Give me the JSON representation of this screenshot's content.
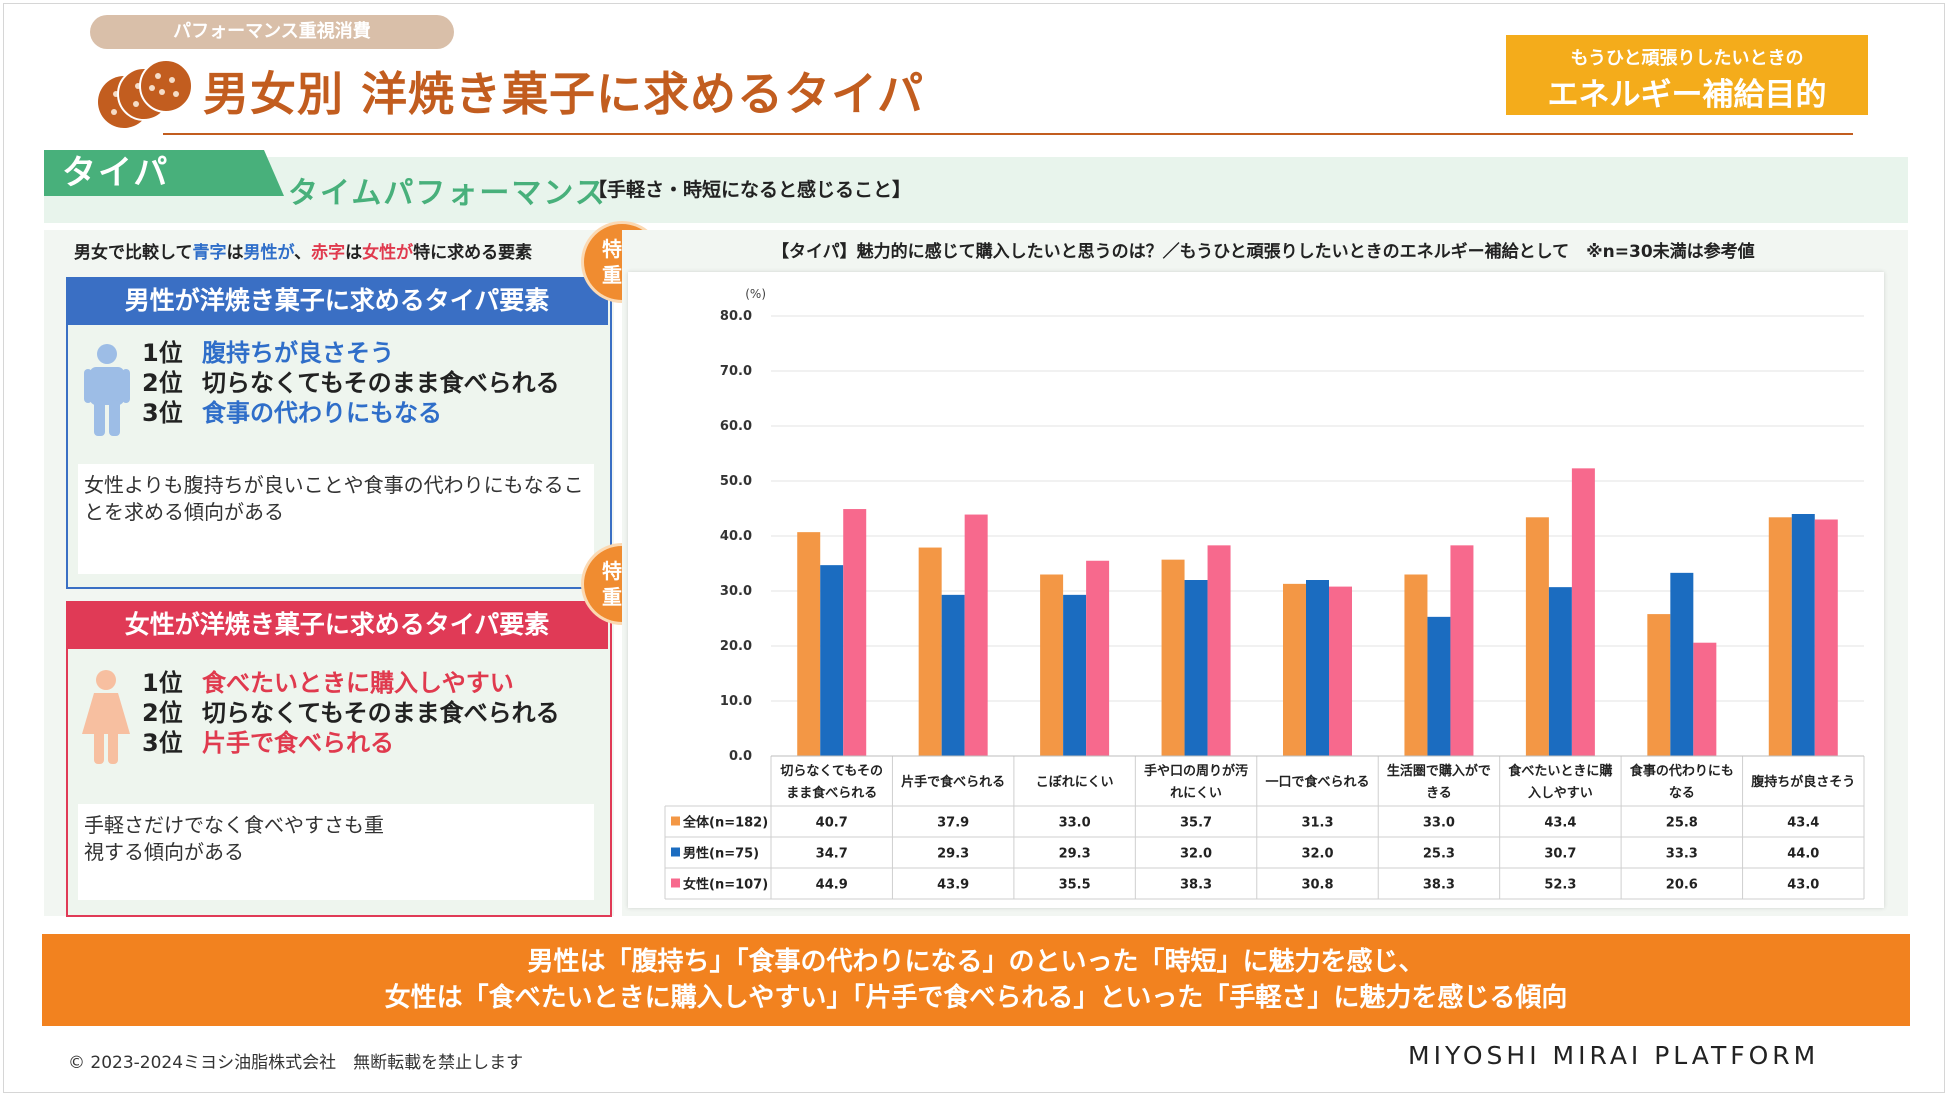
{
  "header": {
    "category_tag": "パフォーマンス重視消費",
    "title": "男女別 洋焼き菓子に求めるタイパ",
    "purpose_sub": "もうひと頑張りしたいときの",
    "purpose_main": "エネルギー補給目的"
  },
  "taipa": {
    "label": "タイパ",
    "full_name": "タイムパフォーマンス",
    "definition": "【手軽さ・時短になると感じること】"
  },
  "left_panel": {
    "compare_note": {
      "p1": "男女で比較して",
      "blue_word": "青字",
      "p2": "は",
      "male_word": "男性が",
      "p3": "、",
      "red_word": "赤字",
      "p4": "は",
      "female_word": "女性が",
      "p5": "特に求める要素"
    },
    "badge_line1": "特に",
    "badge_line2": "重視",
    "male": {
      "heading": "男性が洋焼き菓子に求めるタイパ要素",
      "ranks": [
        {
          "rank": "1位",
          "text": "腹持ちが良さそう"
        },
        {
          "rank": "2位",
          "text": "切らなくてもそのまま食べられる"
        },
        {
          "rank": "3位",
          "text": "食事の代わりにもなる"
        }
      ],
      "note": "女性よりも腹持ちが良いことや食事の代わりにもなることを求める傾向がある"
    },
    "female": {
      "heading": "女性が洋焼き菓子に求めるタイパ要素",
      "ranks": [
        {
          "rank": "1位",
          "text": "食べたいときに購入しやすい"
        },
        {
          "rank": "2位",
          "text": "切らなくてもそのまま食べられる"
        },
        {
          "rank": "3位",
          "text": "片手で食べられる"
        }
      ],
      "note_line1": "手軽さだけでなく食べやすさも重",
      "note_line2": "視する傾向がある"
    }
  },
  "chart_title": "【タイパ】魅力的に感じて購入したいと思うのは？／もうひと頑張りしたいときのエネルギー補給として　※n=30未満は参考値",
  "chart_data": {
    "type": "bar",
    "unit_label": "(%)",
    "ylim": [
      0,
      80
    ],
    "yticks": [
      "0.0",
      "10.0",
      "20.0",
      "30.0",
      "40.0",
      "50.0",
      "60.0",
      "70.0",
      "80.0"
    ],
    "categories": [
      [
        "切らなくてもその",
        "まま食べられる"
      ],
      [
        "片手で食べられる"
      ],
      [
        "こぼれにくい"
      ],
      [
        "手や口の周りが汚",
        "れにくい"
      ],
      [
        "一口で食べられる"
      ],
      [
        "生活圏で購入がで",
        "きる"
      ],
      [
        "食べたいときに購",
        "入しやすい"
      ],
      [
        "食事の代わりにも",
        "なる"
      ],
      [
        "腹持ちが良さそう"
      ]
    ],
    "series": [
      {
        "name": "全体(n=182)",
        "color": "#f39745",
        "values": [
          40.7,
          37.9,
          33.0,
          35.7,
          31.3,
          33.0,
          43.4,
          25.8,
          43.4
        ]
      },
      {
        "name": "男性(n=75)",
        "color": "#1b6cc0",
        "values": [
          34.7,
          29.3,
          29.3,
          32.0,
          32.0,
          25.3,
          30.7,
          33.3,
          44.0
        ]
      },
      {
        "name": "女性(n=107)",
        "color": "#f7698d",
        "values": [
          44.9,
          43.9,
          35.5,
          38.3,
          30.8,
          38.3,
          52.3,
          20.6,
          43.0
        ]
      }
    ],
    "value_labels": [
      [
        "40.7",
        "37.9",
        "33.0",
        "35.7",
        "31.3",
        "33.0",
        "43.4",
        "25.8",
        "43.4"
      ],
      [
        "34.7",
        "29.3",
        "29.3",
        "32.0",
        "32.0",
        "25.3",
        "30.7",
        "33.3",
        "44.0"
      ],
      [
        "44.9",
        "43.9",
        "35.5",
        "38.3",
        "30.8",
        "38.3",
        "52.3",
        "20.6",
        "43.0"
      ]
    ]
  },
  "summary": {
    "line1": "男性は「腹持ち」「食事の代わりになる」のといった「時短」に魅力を感じ、",
    "line2": "女性は「食べたいときに購入しやすい」「片手で食べられる」といった「手軽さ」に魅力を感じる傾向"
  },
  "footer": {
    "copyright": "© 2023-2024ミヨシ油脂株式会社　無断転載を禁止します",
    "brand": "MIYOSHI MIRAI PLATFORM"
  },
  "colors": {
    "title": "#c25d1f",
    "male": "#3a6fc4",
    "female": "#e03a56",
    "accent_orange": "#f2821f",
    "taipa_green": "#48b07b"
  }
}
